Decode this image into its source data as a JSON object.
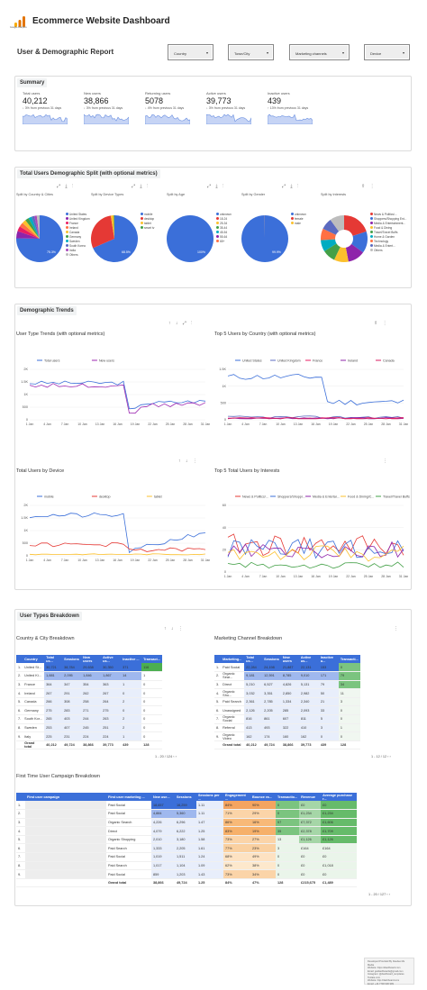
{
  "header": {
    "title": "Ecommerce Website Dashboard",
    "subtitle": "User & Demographic Report",
    "logo_text": "Google Analytics"
  },
  "filters": [
    "Country",
    "Town/City",
    "Marketing channels",
    "Device"
  ],
  "summary": {
    "title": "Summary",
    "cards": [
      {
        "label": "Total users",
        "value": "40,212",
        "change": "↓ 3% from previous 31 days"
      },
      {
        "label": "New users",
        "value": "38,866",
        "change": "↓ 3% from previous 31 days"
      },
      {
        "label": "Returning users",
        "value": "5078",
        "change": "↓ 4% from previous 31 days"
      },
      {
        "label": "Active users",
        "value": "39,773",
        "change": "↓ 3% from previous 31 days"
      },
      {
        "label": "Inactive users",
        "value": "439",
        "change": "↑ 13% from previous 31 days"
      }
    ]
  },
  "demo_split": {
    "title": "Total Users Demographic Split (with optional metrics)",
    "pies": [
      {
        "label": "Split by Country & Cities",
        "center": "75.3%",
        "legend": [
          "United States",
          "United Kingdom",
          "France",
          "Ireland",
          "Canada",
          "Germany",
          "Sweden",
          "South Korea",
          "India",
          "Others"
        ],
        "colors": [
          "#3b6fd9",
          "#8e24aa",
          "#e91e63",
          "#ff7043",
          "#fbc02d",
          "#43a047",
          "#00acc1",
          "#5c6bc0",
          "#ab47bc",
          "#bdbdbd"
        ],
        "values": [
          75.3,
          5,
          3.5,
          3,
          2.8,
          2.5,
          2.2,
          2,
          1.7,
          2
        ]
      },
      {
        "label": "Split by Device Types",
        "center": "68.5%",
        "legend": [
          "mobile",
          "desktop",
          "tablet",
          "smart tv"
        ],
        "colors": [
          "#3b6fd9",
          "#e53935",
          "#fbc02d",
          "#43a047"
        ],
        "values": [
          68.5,
          29,
          2,
          0.5
        ]
      },
      {
        "label": "Split by Age",
        "center": "100%",
        "legend": [
          "unknown",
          "18-24",
          "25-34",
          "35-44",
          "45-54",
          "55-64",
          "65+"
        ],
        "colors": [
          "#3b6fd9",
          "#e53935",
          "#fbc02d",
          "#43a047",
          "#00acc1",
          "#8e24aa",
          "#ff7043"
        ],
        "values": [
          100
        ]
      },
      {
        "label": "Split by Gender",
        "center": "99.9%",
        "legend": [
          "unknown",
          "female",
          "male"
        ],
        "colors": [
          "#3b6fd9",
          "#e53935",
          "#fbc02d"
        ],
        "values": [
          99.9,
          0.05,
          0.05
        ]
      },
      {
        "label": "Split by Interests",
        "center": "",
        "legend": [
          "News & Politics/...",
          "Shoppers/Shopping Ent...",
          "Media & Entertainment...",
          "Food & Dining",
          "Travel/Travel Buffs",
          "Home & Garden",
          "Technology",
          "Media & Entert...",
          "Others"
        ],
        "colors": [
          "#e53935",
          "#3b6fd9",
          "#8e24aa",
          "#fbc02d",
          "#43a047",
          "#00acc1",
          "#ff7043",
          "#5c6bc0",
          "#bdbdbd"
        ],
        "values": [
          20,
          15,
          12,
          10,
          9,
          8,
          8,
          8,
          10
        ]
      }
    ]
  },
  "trends": {
    "title": "Demographic Trends",
    "user_type": {
      "title": "User Type Trends (with optional metrics)",
      "legend": [
        "Total users",
        "New users"
      ]
    },
    "top5_country": {
      "title": "Top 5 Users by Country (with optional metrics)",
      "legend": [
        "United States",
        "United Kingdom",
        "France",
        "Ireland",
        "Canada"
      ]
    },
    "device": {
      "title": "Total Users by Device",
      "legend": [
        "mobile",
        "desktop",
        "tablet"
      ]
    },
    "interests": {
      "title": "Top 5 Total Users by Interests",
      "legend": [
        "News & Politics/...",
        "Shoppers/Shoppi...",
        "Media & Entertai...",
        "Food & Dining/C...",
        "Travel/Travel Buffs"
      ]
    },
    "x_ticks": [
      "1 Jan",
      "4 Jan",
      "7 Jan",
      "10 Jan",
      "13 Jan",
      "16 Jan",
      "19 Jan",
      "22 Jan",
      "25 Jan",
      "28 Jan",
      "31 Jan"
    ],
    "y_ticks_2k": [
      "2K",
      "1.5K",
      "1K",
      "500",
      "0"
    ],
    "y_ticks_1k": [
      "1.5K",
      "1K",
      "500",
      "0"
    ],
    "y_ticks_small": [
      "60",
      "40",
      "20",
      "0"
    ]
  },
  "breakdown": {
    "title": "User Types Breakdown",
    "country": {
      "title": "Country & City Breakdown",
      "headers": [
        "",
        "Country",
        "Total us...",
        "Sessions",
        "New users",
        "Active us...",
        "Inactive ...",
        "Transact..."
      ],
      "rows": [
        [
          "1.",
          "United St...",
          "30,721",
          "38,784",
          "29,638",
          "30,350",
          "371",
          "116"
        ],
        [
          "2.",
          "United Ki...",
          "1,881",
          "2,095",
          "1,846",
          "1,867",
          "14",
          "1"
        ],
        [
          "3.",
          "France",
          "364",
          "347",
          "354",
          "363",
          "1",
          "0"
        ],
        [
          "4.",
          "Ireland",
          "267",
          "291",
          "262",
          "267",
          "0",
          "0"
        ],
        [
          "5.",
          "Canada",
          "266",
          "308",
          "258",
          "264",
          "2",
          "0"
        ],
        [
          "6.",
          "Germany",
          "275",
          "283",
          "271",
          "275",
          "0",
          "0"
        ],
        [
          "7.",
          "South Kor...",
          "265",
          "403",
          "244",
          "263",
          "2",
          "0"
        ],
        [
          "8.",
          "Sweden",
          "253",
          "407",
          "245",
          "251",
          "2",
          "0"
        ],
        [
          "9.",
          "Italy",
          "225",
          "231",
          "224",
          "224",
          "1",
          "0"
        ]
      ],
      "total": [
        "",
        "Grand total",
        "40,212",
        "49,724",
        "38,866",
        "39,773",
        "439",
        "128"
      ],
      "pager": "1 - 20 / 124"
    },
    "channel": {
      "title": "Marketing Channel Breakdown",
      "headers": [
        "",
        "Marketing...",
        "Total us...",
        "Sessions",
        "New users",
        "Active us...",
        "Inactive u...",
        "Transacti..."
      ],
      "rows": [
        [
          "1.",
          "Paid Social",
          "22,284",
          "24,198",
          "21,887",
          "22,131",
          "153",
          "0"
        ],
        [
          "2.",
          "Organic Sear...",
          "9,181",
          "12,591",
          "8,785",
          "9,010",
          "171",
          "79"
        ],
        [
          "3.",
          "Direct",
          "5,210",
          "6,527",
          "4,826",
          "5,131",
          "79",
          "34"
        ],
        [
          "4.",
          "Organic Sho...",
          "3,032",
          "3,351",
          "2,850",
          "2,982",
          "50",
          "11"
        ],
        [
          "5.",
          "Paid Search",
          "2,361",
          "2,785",
          "1,334",
          "2,340",
          "21",
          "3"
        ],
        [
          "6.",
          "Unassigned",
          "2,126",
          "2,205",
          "285",
          "2,093",
          "33",
          "0"
        ],
        [
          "7.",
          "Organic Social",
          "816",
          "861",
          "607",
          "811",
          "5",
          "0"
        ],
        [
          "8.",
          "Referral",
          "413",
          "493",
          "322",
          "410",
          "3",
          "1"
        ],
        [
          "9.",
          "Organic Video",
          "162",
          "174",
          "160",
          "162",
          "0",
          "0"
        ]
      ],
      "total": [
        "",
        "Grand total",
        "40,212",
        "49,724",
        "38,866",
        "39,773",
        "439",
        "128"
      ],
      "pager": "1 - 12 / 12"
    },
    "campaign": {
      "title": "First Time User Campaign Breakdown",
      "headers": [
        "",
        "First user campaign",
        "First user marketing ...",
        "New use...",
        "Sessions",
        "Sessions per ...",
        "Engagement ...",
        "Bounce ra...",
        "Transactio...",
        "Revenue",
        "Average purchase r..."
      ],
      "rows": [
        [
          "1.",
          "",
          "Paid Social",
          "18,657",
          "16,259",
          "1.11",
          "84%",
          "90%",
          "0",
          "£0",
          "£0"
        ],
        [
          "2.",
          "",
          "Paid Social",
          "4,884",
          "5,360",
          "1.11",
          "71%",
          "29%",
          "0",
          "£1,234",
          "£1,234"
        ],
        [
          "3.",
          "",
          "Organic Search",
          "4,226",
          "6,296",
          "1.47",
          "86%",
          "16%",
          "57",
          "£7,372",
          "£1,606"
        ],
        [
          "4.",
          "",
          "Direct",
          "4,079",
          "6,222",
          "1.25",
          "83%",
          "19%",
          "35",
          "£2,378",
          "£1,709"
        ],
        [
          "5.",
          "",
          "Organic Shopping",
          "2,010",
          "3,180",
          "1.58",
          "73%",
          "27%",
          "13",
          "£1,126",
          "£1,126"
        ],
        [
          "6.",
          "",
          "Paid Search",
          "1,333",
          "2,205",
          "1.61",
          "77%",
          "23%",
          "3",
          "£164",
          "£164"
        ],
        [
          "7.",
          "",
          "Paid Social",
          "1,019",
          "1,511",
          "1.24",
          "68%",
          "49%",
          "0",
          "£0",
          "£0"
        ],
        [
          "8.",
          "",
          "Paid Search",
          "1,017",
          "1,104",
          "1.09",
          "62%",
          "38%",
          "0",
          "£0",
          "£1,018"
        ],
        [
          "9.",
          "",
          "Paid Social",
          "859",
          "1,203",
          "1.43",
          "73%",
          "34%",
          "0",
          "£0",
          "£0"
        ]
      ],
      "total": [
        "",
        "",
        "Grand total",
        "38,866",
        "49,724",
        "1.25",
        "84%",
        "47%",
        "128",
        "£215,675",
        "£1,489"
      ],
      "pager": "1 - 20 / 127"
    }
  },
  "footer": {
    "lines": [
      "Developed Provided By Deedee Me Media",
      "Website: https://dashboard.com",
      "Email: getdashboards@gmail.com",
      "Instagram: @dashboard_templates",
      "Toolate.com",
      "Website: http://dashboard.com",
      "Email: +44 7700 900 999"
    ]
  }
}
